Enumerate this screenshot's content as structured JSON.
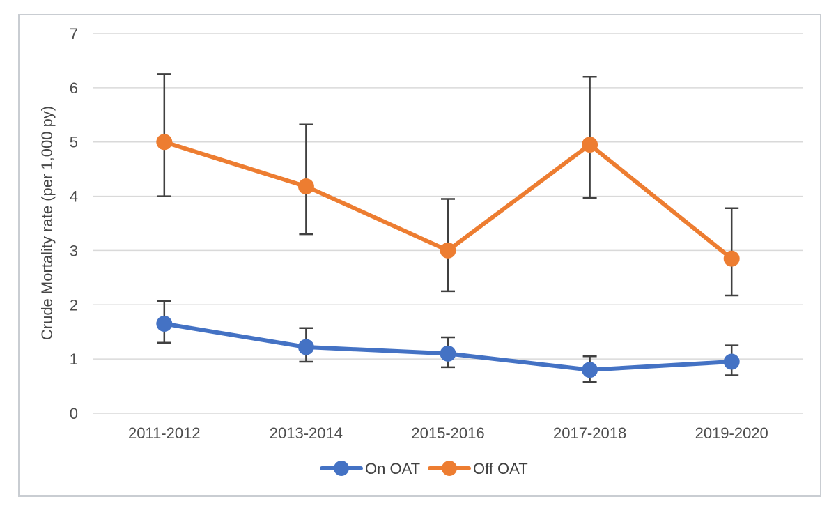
{
  "figure": {
    "background": "#ffffff",
    "border_color": "#c9cdd2"
  },
  "chart_data": {
    "type": "line",
    "title": "",
    "xlabel": "",
    "ylabel": "Crude Mortality rate (per 1,000 py)",
    "ylim": [
      0,
      7
    ],
    "yticks": [
      0,
      1,
      2,
      3,
      4,
      5,
      6,
      7
    ],
    "grid": true,
    "gridline_color": "#d9d9d9",
    "error_bar_color": "#404040",
    "legend_position": "bottom-center",
    "categories": [
      "2011-2012",
      "2013-2014",
      "2015-2016",
      "2017-2018",
      "2019-2020"
    ],
    "series": [
      {
        "name": "On OAT",
        "color": "#4472C4",
        "values": [
          1.65,
          1.22,
          1.1,
          0.8,
          0.95
        ],
        "error_low": [
          1.3,
          0.95,
          0.85,
          0.58,
          0.7
        ],
        "error_high": [
          2.07,
          1.57,
          1.4,
          1.05,
          1.25
        ]
      },
      {
        "name": "Off OAT",
        "color": "#ED7D31",
        "values": [
          5.0,
          4.18,
          3.0,
          4.95,
          2.85
        ],
        "error_low": [
          4.0,
          3.3,
          2.25,
          3.97,
          2.17
        ],
        "error_high": [
          6.25,
          5.32,
          3.95,
          6.2,
          3.78
        ]
      }
    ]
  }
}
